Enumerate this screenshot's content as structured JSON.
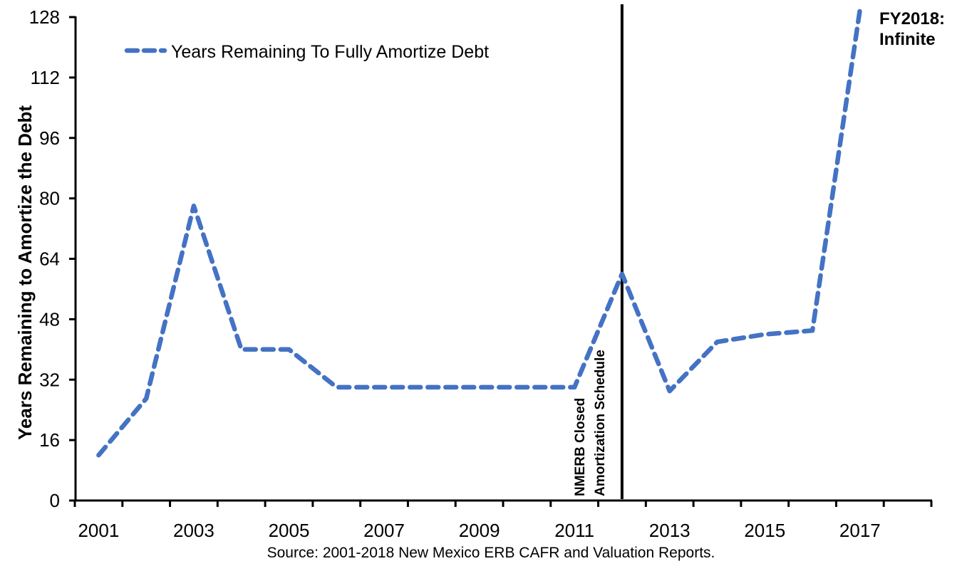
{
  "colors": {
    "series_line": "#4472C4",
    "axis": "#000000",
    "event_line": "#000000",
    "text": "#000000",
    "background": "#FFFFFF"
  },
  "chart_data": {
    "type": "line",
    "title": "",
    "x": [
      2001,
      2002,
      2003,
      2004,
      2005,
      2006,
      2007,
      2008,
      2009,
      2010,
      2011,
      2012,
      2013,
      2014,
      2015,
      2016,
      2017
    ],
    "series": [
      {
        "name": "Years Remaining To Fully Amortize Debt",
        "values": [
          12,
          27,
          78,
          40,
          40,
          30,
          30,
          30,
          30,
          30,
          30,
          60,
          29,
          42,
          44,
          45,
          null
        ]
      }
    ],
    "final_value_note": "Final point (FY2018) is infinite; line is drawn off the top of the axis",
    "final_plot_value": 130,
    "line_style": "dashed",
    "xlabel": "",
    "ylabel": "Years Remaining to Amortize the Debt",
    "ylim": [
      0,
      128
    ],
    "y_ticks": [
      0,
      16,
      32,
      48,
      64,
      80,
      96,
      112,
      128
    ],
    "x_tick_labels": [
      "2001",
      "2003",
      "2005",
      "2007",
      "2009",
      "2011",
      "2013",
      "2015",
      "2017"
    ],
    "x_axis_bins": {
      "start_year": 2001,
      "bin_count": 18
    },
    "grid": false,
    "legend_position": "top-left",
    "annotations": {
      "vertical_line_x": 2012,
      "vertical_line_label": [
        "NMERB Closed",
        "Amortization Schedule"
      ],
      "endpoint_label": [
        "FY2018:",
        "Infinite"
      ]
    },
    "source_note": "Source: 2001-2018 New Mexico ERB CAFR and Valuation Reports."
  }
}
